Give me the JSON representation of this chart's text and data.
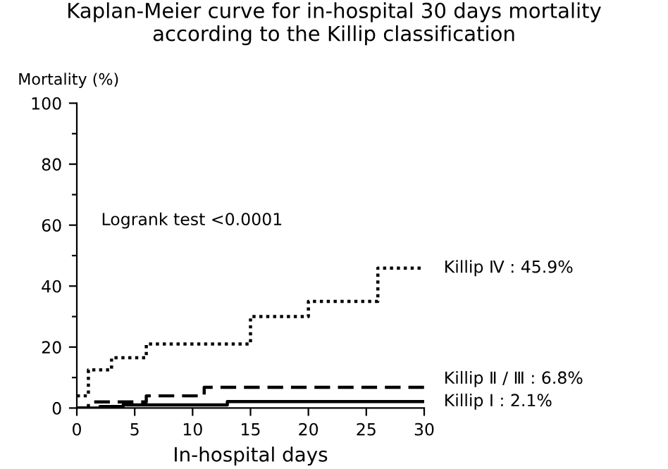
{
  "chart_data": {
    "type": "step",
    "title": "Kaplan-Meier curve for in-hospital 30 days mortality\naccording to the Killip classification",
    "xlabel": "In-hospital days",
    "ylabel": "Mortality (%)",
    "series": [
      {
        "name": "Killip Ⅳ : 45.9%",
        "color": "#000000",
        "line_style": "dotted",
        "x": [
          0,
          1,
          3,
          6,
          15,
          20,
          26,
          30
        ],
        "values": [
          4,
          12.5,
          16.5,
          21,
          30,
          35,
          45.9,
          45.9
        ]
      },
      {
        "name": "Killip Ⅱ / Ⅲ : 6.8%",
        "color": "#000000",
        "line_style": "dashed",
        "x": [
          0,
          1,
          6,
          11,
          30
        ],
        "values": [
          0,
          2,
          4,
          6.8,
          6.8
        ]
      },
      {
        "name": "Killip Ⅰ : 2.1%",
        "color": "#000000",
        "line_style": "solid",
        "x": [
          0,
          2,
          4,
          13,
          30
        ],
        "values": [
          0,
          0.5,
          1,
          2.1,
          2.1
        ]
      }
    ],
    "annotations": [
      "Logrank test <0.0001"
    ],
    "xlim": [
      0,
      30
    ],
    "ylim": [
      0,
      100
    ],
    "xticks": [
      0,
      5,
      10,
      15,
      20,
      25,
      30
    ],
    "yticks": [
      0,
      {
        "value": 10,
        "label": null
      },
      20,
      {
        "value": 30,
        "label": null
      },
      40,
      {
        "value": 50,
        "label": null
      },
      60,
      {
        "value": 70,
        "label": null
      },
      80,
      {
        "value": 90,
        "label": null
      },
      100
    ],
    "grid": false,
    "legend": false
  }
}
